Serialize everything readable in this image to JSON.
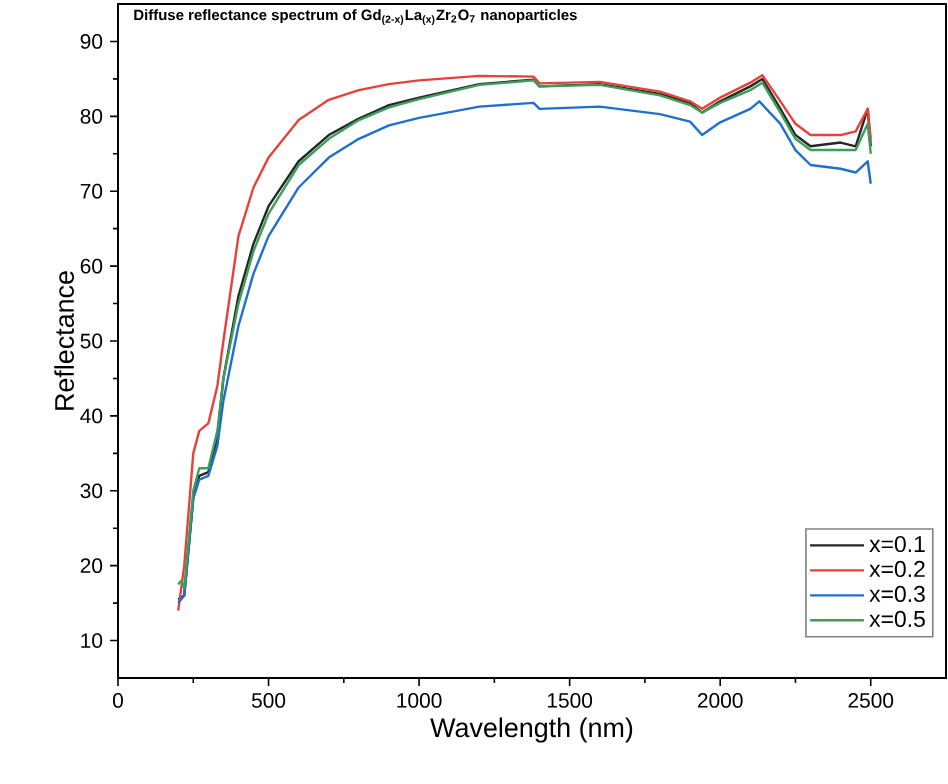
{
  "chart_data": {
    "type": "line",
    "title": "Diffuse reflectance spectrum of Gd$_{(2-x)}$La$_{(x)}$Zr$_{2}$O$_{7}$ nanoparticles",
    "xlabel": "Wavelength (nm)",
    "ylabel": "Reflectance",
    "xlim": [
      0,
      2750
    ],
    "ylim": [
      5,
      95
    ],
    "xticks": [
      0,
      500,
      1000,
      1500,
      2000,
      2500
    ],
    "yticks": [
      10,
      20,
      30,
      40,
      50,
      60,
      70,
      80,
      90
    ],
    "legend": "bottom right",
    "grid": false,
    "marker": "none",
    "line_style": "solid",
    "series": [
      {
        "name": "x=0.1",
        "color": "#262626",
        "x": [
          200,
          220,
          250,
          270,
          300,
          330,
          350,
          400,
          450,
          500,
          600,
          700,
          800,
          900,
          1000,
          1200,
          1380,
          1400,
          1600,
          1800,
          1900,
          1940,
          2000,
          2100,
          2140,
          2200,
          2250,
          2300,
          2400,
          2450,
          2490,
          2500
        ],
        "values": [
          15.5,
          16,
          29,
          32,
          32.5,
          37,
          45,
          56,
          63,
          68,
          74,
          77.5,
          79.7,
          81.5,
          82.5,
          84.3,
          84.9,
          84,
          84.3,
          83,
          81.8,
          80.5,
          82,
          84,
          85,
          81,
          77.5,
          76,
          76.5,
          76,
          81,
          76
        ]
      },
      {
        "name": "x=0.2",
        "color": "#e8413c",
        "x": [
          200,
          220,
          250,
          270,
          300,
          330,
          350,
          400,
          450,
          500,
          600,
          700,
          800,
          900,
          1000,
          1200,
          1380,
          1400,
          1600,
          1800,
          1900,
          1940,
          2000,
          2100,
          2140,
          2200,
          2250,
          2300,
          2400,
          2450,
          2490,
          2500
        ],
        "values": [
          14,
          20,
          35,
          38,
          39,
          44,
          50,
          64,
          70.5,
          74.5,
          79.5,
          82.2,
          83.5,
          84.3,
          84.8,
          85.4,
          85.3,
          84.4,
          84.6,
          83.3,
          82,
          81,
          82.5,
          84.5,
          85.5,
          82,
          79,
          77.5,
          77.5,
          78,
          81,
          77
        ]
      },
      {
        "name": "x=0.3",
        "color": "#1f6fd1",
        "x": [
          200,
          220,
          250,
          270,
          300,
          330,
          350,
          400,
          450,
          500,
          600,
          700,
          800,
          900,
          1000,
          1200,
          1380,
          1400,
          1600,
          1800,
          1900,
          1940,
          2000,
          2100,
          2130,
          2200,
          2250,
          2300,
          2400,
          2450,
          2490,
          2500
        ],
        "values": [
          15,
          16,
          29,
          31.5,
          32,
          36,
          42,
          52,
          59,
          64,
          70.5,
          74.5,
          77,
          78.8,
          79.8,
          81.3,
          81.8,
          81,
          81.3,
          80.3,
          79.3,
          77.5,
          79.2,
          81,
          82,
          79,
          75.5,
          73.5,
          73,
          72.5,
          74,
          71
        ]
      },
      {
        "name": "x=0.5",
        "color": "#3c9e5a",
        "x": [
          200,
          210,
          220,
          250,
          270,
          300,
          330,
          350,
          400,
          450,
          500,
          600,
          700,
          800,
          900,
          1000,
          1200,
          1380,
          1400,
          1600,
          1800,
          1900,
          1940,
          2000,
          2100,
          2140,
          2200,
          2250,
          2300,
          2400,
          2450,
          2490,
          2500
        ],
        "values": [
          17.5,
          18,
          17,
          30,
          33,
          33,
          38,
          45,
          55,
          62,
          67,
          73.5,
          77,
          79.5,
          81.2,
          82.3,
          84.2,
          84.8,
          84,
          84.2,
          82.8,
          81.5,
          80.5,
          81.8,
          83.5,
          84.5,
          80.5,
          77,
          75.5,
          75.5,
          75.5,
          79,
          75
        ]
      }
    ]
  }
}
